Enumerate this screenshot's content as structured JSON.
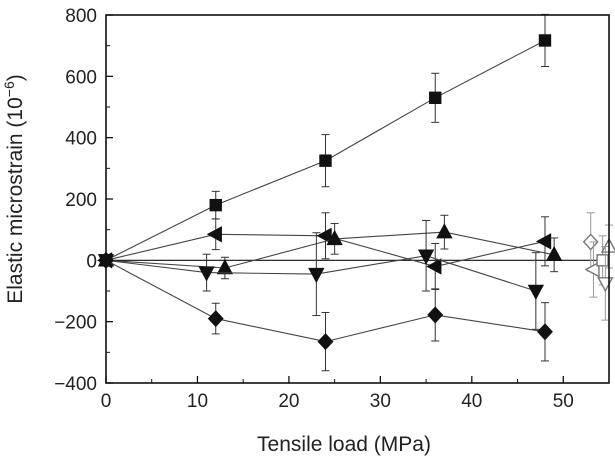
{
  "chart_data": {
    "type": "scatter",
    "xlabel": "Tensile load (MPa)",
    "ylabel_main": "Elastic microstrain (10",
    "ylabel_exp": "−6",
    "ylabel_close": ")",
    "xlim": [
      0,
      55
    ],
    "ylim": [
      -400,
      800
    ],
    "xticks": [
      0,
      10,
      20,
      30,
      40,
      50
    ],
    "yticks": [
      -400,
      -200,
      0,
      200,
      400,
      600,
      800
    ],
    "xtick_labels": [
      "0",
      "10",
      "20",
      "30",
      "40",
      "50"
    ],
    "ytick_labels": [
      "−400",
      "−200",
      "0",
      "200",
      "400",
      "600",
      "800"
    ],
    "grid": false,
    "zero_line": true,
    "series": [
      {
        "marker": "square",
        "filled": true,
        "connected": true,
        "points": [
          {
            "x": 0,
            "y": 0,
            "err": 0
          },
          {
            "x": 12,
            "y": 180,
            "err": 45
          },
          {
            "x": 24,
            "y": 325,
            "err": 85
          },
          {
            "x": 36,
            "y": 530,
            "err": 80
          },
          {
            "x": 48,
            "y": 717,
            "err": 85
          }
        ]
      },
      {
        "marker": "triangle-left",
        "filled": true,
        "connected": true,
        "points": [
          {
            "x": 0,
            "y": 0,
            "err": 0
          },
          {
            "x": 12,
            "y": 85,
            "err": 50
          },
          {
            "x": 24,
            "y": 80,
            "err": 75
          },
          {
            "x": 36,
            "y": -20,
            "err": 75
          },
          {
            "x": 48,
            "y": 62,
            "err": 80
          }
        ]
      },
      {
        "marker": "triangle-up",
        "filled": true,
        "connected": true,
        "points": [
          {
            "x": 0,
            "y": 0,
            "err": 0
          },
          {
            "x": 13,
            "y": -25,
            "err": 35
          },
          {
            "x": 25,
            "y": 70,
            "err": 50
          },
          {
            "x": 37,
            "y": 92,
            "err": 55
          },
          {
            "x": 49,
            "y": 18,
            "err": 55
          }
        ]
      },
      {
        "marker": "triangle-down",
        "filled": true,
        "connected": true,
        "points": [
          {
            "x": 0,
            "y": 0,
            "err": 0
          },
          {
            "x": 11,
            "y": -40,
            "err": 60
          },
          {
            "x": 23,
            "y": -45,
            "err": 135
          },
          {
            "x": 35,
            "y": 15,
            "err": 115
          },
          {
            "x": 47,
            "y": -100,
            "err": 125
          }
        ]
      },
      {
        "marker": "diamond",
        "filled": true,
        "connected": true,
        "points": [
          {
            "x": 0,
            "y": 0,
            "err": 0
          },
          {
            "x": 12,
            "y": -190,
            "err": 50
          },
          {
            "x": 24,
            "y": -265,
            "err": 95
          },
          {
            "x": 36,
            "y": -178,
            "err": 85
          },
          {
            "x": 48,
            "y": -233,
            "err": 95
          }
        ]
      },
      {
        "marker": "diamond",
        "filled": false,
        "connected": false,
        "points": [
          {
            "x": 53,
            "y": 60,
            "err": 95
          }
        ]
      },
      {
        "marker": "triangle-left",
        "filled": false,
        "connected": false,
        "points": [
          {
            "x": 53.3,
            "y": -30,
            "err": 90
          }
        ]
      },
      {
        "marker": "square",
        "filled": false,
        "connected": false,
        "points": [
          {
            "x": 54.3,
            "y": 0,
            "err": 80
          }
        ]
      },
      {
        "marker": "triangle-up",
        "filled": false,
        "connected": false,
        "points": [
          {
            "x": 55,
            "y": 45,
            "err": 70
          }
        ]
      },
      {
        "marker": "triangle-down",
        "filled": false,
        "connected": false,
        "points": [
          {
            "x": 54.6,
            "y": -75,
            "err": 120
          }
        ]
      }
    ]
  }
}
